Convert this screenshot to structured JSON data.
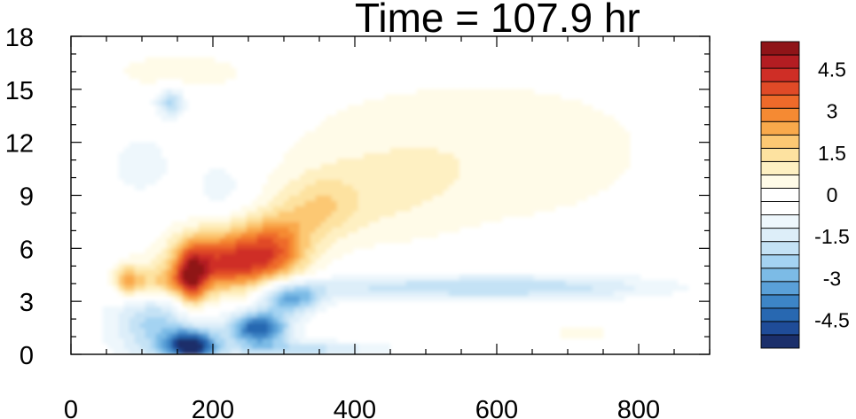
{
  "chart_data": {
    "type": "heatmap",
    "title": "Time = 107.9 hr",
    "xlabel": "",
    "ylabel": "",
    "xlim": [
      0,
      900
    ],
    "ylim": [
      0,
      18
    ],
    "x_ticks": [
      "0",
      "200",
      "400",
      "600",
      "800"
    ],
    "x_tick_values": [
      0,
      200,
      400,
      600,
      800
    ],
    "y_ticks": [
      "0",
      "3",
      "6",
      "9",
      "12",
      "15",
      "18"
    ],
    "y_tick_values": [
      0,
      3,
      6,
      9,
      12,
      15,
      18
    ],
    "colorbar": {
      "levels": [
        -5.5,
        -5,
        -4.5,
        -4,
        -3.5,
        -3,
        -2.5,
        -2,
        -1.5,
        -1,
        -0.5,
        0,
        0.5,
        1,
        1.5,
        2,
        2.5,
        3,
        3.5,
        4,
        4.5,
        5,
        5.5
      ],
      "colors": [
        "#1b2f6b",
        "#1f4c98",
        "#2868b1",
        "#3d85c6",
        "#5aa0d8",
        "#7cbbe6",
        "#a4d3f2",
        "#c4e2f5",
        "#ddeef9",
        "#eef7fc",
        "#ffffff",
        "#ffffff",
        "#fffbe8",
        "#fef0c2",
        "#fde2a0",
        "#fcc873",
        "#f9a94b",
        "#f58a33",
        "#ee6a2a",
        "#e04a27",
        "#cf2e26",
        "#b31d22",
        "#8f1418"
      ],
      "labels": [
        "4.5",
        "3",
        "1.5",
        "0",
        "-1.5",
        "-3",
        "-4.5"
      ],
      "label_values": [
        4.5,
        3,
        1.5,
        0,
        -1.5,
        -3,
        -4.5
      ]
    },
    "features": [
      {
        "x": 220,
        "y": 5.2,
        "sx": 55,
        "sy": 1.3,
        "value": 4.5
      },
      {
        "x": 170,
        "y": 4.3,
        "sx": 16,
        "sy": 1.2,
        "value": 3.6
      },
      {
        "x": 80,
        "y": 4.2,
        "sx": 14,
        "sy": 0.7,
        "value": 2.0
      },
      {
        "x": 120,
        "y": 4.0,
        "sx": 35,
        "sy": 0.7,
        "value": 2.2
      },
      {
        "x": 290,
        "y": 6.2,
        "sx": 35,
        "sy": 1.3,
        "value": 2.4
      },
      {
        "x": 350,
        "y": 8.3,
        "sx": 40,
        "sy": 1.3,
        "value": 1.3
      },
      {
        "x": 420,
        "y": 9.0,
        "sx": 90,
        "sy": 2.2,
        "value": 0.8
      },
      {
        "x": 620,
        "y": 10.0,
        "sx": 160,
        "sy": 2.6,
        "value": 0.6
      },
      {
        "x": 560,
        "y": 13.5,
        "sx": 220,
        "sy": 2.5,
        "value": 0.5
      },
      {
        "x": 150,
        "y": 16.0,
        "sx": 70,
        "sy": 0.8,
        "value": 0.8
      },
      {
        "x": 720,
        "y": 1.2,
        "sx": 60,
        "sy": 0.5,
        "value": 0.6
      },
      {
        "x": 170,
        "y": 0.5,
        "sx": 25,
        "sy": 0.6,
        "value": -5.2
      },
      {
        "x": 265,
        "y": 1.5,
        "sx": 30,
        "sy": 0.7,
        "value": -4.6
      },
      {
        "x": 310,
        "y": 3.2,
        "sx": 30,
        "sy": 0.6,
        "value": -3.2
      },
      {
        "x": 120,
        "y": 1.8,
        "sx": 45,
        "sy": 1.6,
        "value": -2.2
      },
      {
        "x": 480,
        "y": 3.8,
        "sx": 150,
        "sy": 0.5,
        "value": -1.6
      },
      {
        "x": 700,
        "y": 3.8,
        "sx": 120,
        "sy": 0.5,
        "value": -1.2
      },
      {
        "x": 330,
        "y": 0.3,
        "sx": 80,
        "sy": 0.3,
        "value": -1.8
      },
      {
        "x": 140,
        "y": 14.3,
        "sx": 15,
        "sy": 0.6,
        "value": -2.2
      },
      {
        "x": 100,
        "y": 10.8,
        "sx": 30,
        "sy": 1.2,
        "value": -1.0
      },
      {
        "x": 210,
        "y": 9.5,
        "sx": 25,
        "sy": 1.0,
        "value": -1.0
      }
    ]
  }
}
